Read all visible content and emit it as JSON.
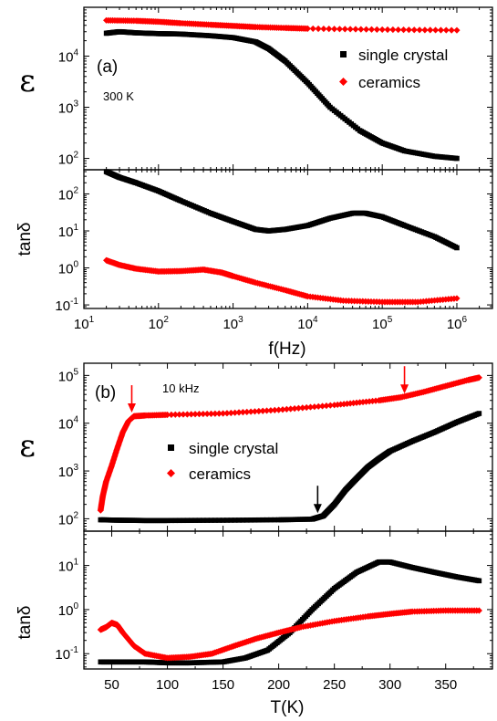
{
  "figure": {
    "colors": {
      "single_crystal": "#000000",
      "ceramics": "#ff0000",
      "axes": "#000000"
    }
  },
  "chart_data": [
    {
      "type": "scatter",
      "panel": "a",
      "subplot": "top",
      "panel_label": "(a)",
      "annotation": "300 K",
      "ylabel": "ε",
      "xlabel": "",
      "xscale": "log",
      "yscale": "log",
      "xlim": [
        10,
        3000000
      ],
      "ylim": [
        60,
        90000
      ],
      "y_ticks": [
        {
          "value": 100,
          "base": "10",
          "exp": "2"
        },
        {
          "value": 1000,
          "base": "10",
          "exp": "3"
        },
        {
          "value": 10000,
          "base": "10",
          "exp": "4"
        }
      ],
      "legend": {
        "position": "top-right",
        "entries": [
          "single crystal",
          "ceramics"
        ]
      },
      "series": [
        {
          "name": "single crystal",
          "color": "#000000",
          "marker": "square",
          "points": [
            [
              20,
              28000
            ],
            [
              30,
              30000
            ],
            [
              50,
              28500
            ],
            [
              100,
              27500
            ],
            [
              200,
              27000
            ],
            [
              500,
              25000
            ],
            [
              1000,
              23000
            ],
            [
              2000,
              19000
            ],
            [
              3000,
              14000
            ],
            [
              5000,
              8000
            ],
            [
              10000,
              3000
            ],
            [
              20000,
              1000
            ],
            [
              50000,
              350
            ],
            [
              100000,
              200
            ],
            [
              200000,
              140
            ],
            [
              500000,
              110
            ],
            [
              1000000,
              100
            ]
          ]
        },
        {
          "name": "ceramics",
          "color": "#ff0000",
          "marker": "diamond",
          "points": [
            [
              20,
              50000
            ],
            [
              50,
              49000
            ],
            [
              100,
              47000
            ],
            [
              200,
              44000
            ],
            [
              500,
              41000
            ],
            [
              1000,
              39000
            ],
            [
              2000,
              37000
            ],
            [
              5000,
              35500
            ],
            [
              10000,
              34500
            ],
            [
              100000,
              33000
            ],
            [
              1000000,
              32000
            ]
          ]
        }
      ]
    },
    {
      "type": "scatter",
      "panel": "a",
      "subplot": "bottom",
      "ylabel": "tanδ",
      "xlabel": "f(Hz)",
      "xscale": "log",
      "yscale": "log",
      "xlim": [
        10,
        3000000
      ],
      "ylim": [
        0.08,
        450
      ],
      "x_ticks": [
        {
          "value": 10,
          "base": "10",
          "exp": "1"
        },
        {
          "value": 100,
          "base": "10",
          "exp": "2"
        },
        {
          "value": 1000,
          "base": "10",
          "exp": "3"
        },
        {
          "value": 10000,
          "base": "10",
          "exp": "4"
        },
        {
          "value": 100000,
          "base": "10",
          "exp": "5"
        },
        {
          "value": 1000000,
          "base": "10",
          "exp": "6"
        }
      ],
      "y_ticks": [
        {
          "value": 0.1,
          "base": "10",
          "exp": "-1"
        },
        {
          "value": 1,
          "base": "10",
          "exp": "0"
        },
        {
          "value": 10,
          "base": "10",
          "exp": "1"
        },
        {
          "value": 100,
          "base": "10",
          "exp": "2"
        }
      ],
      "series": [
        {
          "name": "single crystal",
          "color": "#000000",
          "marker": "square",
          "points": [
            [
              20,
              400
            ],
            [
              30,
              280
            ],
            [
              50,
              200
            ],
            [
              100,
              120
            ],
            [
              200,
              65
            ],
            [
              500,
              30
            ],
            [
              1000,
              18
            ],
            [
              2000,
              11
            ],
            [
              3000,
              10
            ],
            [
              5000,
              11
            ],
            [
              10000,
              14
            ],
            [
              20000,
              22
            ],
            [
              40000,
              30
            ],
            [
              60000,
              30
            ],
            [
              100000,
              24
            ],
            [
              200000,
              14
            ],
            [
              500000,
              7
            ],
            [
              1000000,
              3.5
            ]
          ]
        },
        {
          "name": "ceramics",
          "color": "#ff0000",
          "marker": "diamond",
          "points": [
            [
              20,
              1.6
            ],
            [
              30,
              1.2
            ],
            [
              50,
              0.95
            ],
            [
              100,
              0.8
            ],
            [
              200,
              0.82
            ],
            [
              400,
              0.9
            ],
            [
              700,
              0.75
            ],
            [
              1000,
              0.6
            ],
            [
              2000,
              0.4
            ],
            [
              5000,
              0.25
            ],
            [
              10000,
              0.17
            ],
            [
              30000,
              0.13
            ],
            [
              100000,
              0.12
            ],
            [
              300000,
              0.12
            ],
            [
              1000000,
              0.15
            ]
          ]
        }
      ]
    },
    {
      "type": "scatter",
      "panel": "b",
      "subplot": "top",
      "panel_label": "(b)",
      "annotation": "10 kHz",
      "ylabel": "ε",
      "xlabel": "",
      "xscale": "linear",
      "yscale": "log",
      "xlim": [
        25,
        392
      ],
      "ylim": [
        55,
        180000
      ],
      "y_ticks": [
        {
          "value": 100,
          "base": "10",
          "exp": "2"
        },
        {
          "value": 1000,
          "base": "10",
          "exp": "3"
        },
        {
          "value": 10000,
          "base": "10",
          "exp": "4"
        },
        {
          "value": 100000,
          "base": "10",
          "exp": "5"
        }
      ],
      "legend": {
        "position": "center",
        "entries": [
          "single crystal",
          "ceramics"
        ]
      },
      "arrows": [
        {
          "color": "#ff0000",
          "x": 68,
          "y": 14000
        },
        {
          "color": "#000000",
          "x": 235,
          "y": 110
        },
        {
          "color": "#ff0000",
          "x": 313,
          "y": 35000
        }
      ],
      "series": [
        {
          "name": "single crystal",
          "color": "#000000",
          "marker": "square",
          "points": [
            [
              40,
              95
            ],
            [
              60,
              93
            ],
            [
              80,
              92
            ],
            [
              100,
              92
            ],
            [
              150,
              93
            ],
            [
              200,
              95
            ],
            [
              230,
              98
            ],
            [
              240,
              115
            ],
            [
              250,
              200
            ],
            [
              260,
              400
            ],
            [
              270,
              700
            ],
            [
              280,
              1200
            ],
            [
              290,
              1800
            ],
            [
              300,
              2600
            ],
            [
              320,
              4200
            ],
            [
              340,
              6500
            ],
            [
              360,
              10500
            ],
            [
              380,
              16000
            ]
          ]
        },
        {
          "name": "ceramics",
          "color": "#ff0000",
          "marker": "diamond",
          "points": [
            [
              40,
              150
            ],
            [
              42,
              300
            ],
            [
              45,
              600
            ],
            [
              50,
              1300
            ],
            [
              55,
              3000
            ],
            [
              60,
              6500
            ],
            [
              65,
              11000
            ],
            [
              70,
              14000
            ],
            [
              80,
              14500
            ],
            [
              100,
              15000
            ],
            [
              150,
              16000
            ],
            [
              200,
              19000
            ],
            [
              250,
              24000
            ],
            [
              290,
              30000
            ],
            [
              310,
              35000
            ],
            [
              330,
              45000
            ],
            [
              350,
              60000
            ],
            [
              370,
              80000
            ],
            [
              380,
              90000
            ]
          ]
        }
      ]
    },
    {
      "type": "scatter",
      "panel": "b",
      "subplot": "bottom",
      "ylabel": "tanδ",
      "xlabel": "T(K)",
      "xscale": "linear",
      "yscale": "log",
      "xlim": [
        25,
        392
      ],
      "ylim": [
        0.045,
        60
      ],
      "x_ticks": [
        {
          "value": 50,
          "label": "50"
        },
        {
          "value": 100,
          "label": "100"
        },
        {
          "value": 150,
          "label": "150"
        },
        {
          "value": 200,
          "label": "200"
        },
        {
          "value": 250,
          "label": "250"
        },
        {
          "value": 300,
          "label": "300"
        },
        {
          "value": 350,
          "label": "350"
        }
      ],
      "y_ticks": [
        {
          "value": 0.1,
          "base": "10",
          "exp": "-1"
        },
        {
          "value": 1,
          "base": "10",
          "exp": "0"
        },
        {
          "value": 10,
          "base": "10",
          "exp": "1"
        }
      ],
      "series": [
        {
          "name": "single crystal",
          "color": "#000000",
          "marker": "square",
          "points": [
            [
              40,
              0.065
            ],
            [
              60,
              0.065
            ],
            [
              80,
              0.065
            ],
            [
              100,
              0.062
            ],
            [
              120,
              0.062
            ],
            [
              150,
              0.065
            ],
            [
              170,
              0.08
            ],
            [
              190,
              0.12
            ],
            [
              210,
              0.3
            ],
            [
              230,
              1
            ],
            [
              250,
              3
            ],
            [
              270,
              7
            ],
            [
              290,
              12
            ],
            [
              300,
              12
            ],
            [
              320,
              9
            ],
            [
              340,
              7
            ],
            [
              360,
              5.5
            ],
            [
              380,
              4.5
            ]
          ]
        },
        {
          "name": "ceramics",
          "color": "#ff0000",
          "marker": "diamond",
          "points": [
            [
              40,
              0.35
            ],
            [
              45,
              0.4
            ],
            [
              50,
              0.5
            ],
            [
              55,
              0.45
            ],
            [
              60,
              0.3
            ],
            [
              70,
              0.15
            ],
            [
              80,
              0.1
            ],
            [
              100,
              0.08
            ],
            [
              120,
              0.085
            ],
            [
              140,
              0.1
            ],
            [
              160,
              0.15
            ],
            [
              180,
              0.22
            ],
            [
              200,
              0.3
            ],
            [
              220,
              0.4
            ],
            [
              250,
              0.55
            ],
            [
              280,
              0.7
            ],
            [
              300,
              0.8
            ],
            [
              320,
              0.9
            ],
            [
              350,
              0.95
            ],
            [
              380,
              0.95
            ]
          ]
        }
      ]
    }
  ]
}
